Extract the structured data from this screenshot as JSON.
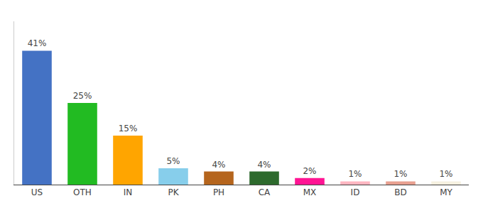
{
  "chart_data": {
    "type": "bar",
    "categories": [
      "US",
      "OTH",
      "IN",
      "PK",
      "PH",
      "CA",
      "MX",
      "ID",
      "BD",
      "MY"
    ],
    "values": [
      41,
      25,
      15,
      5,
      4,
      4,
      2,
      1,
      1,
      1
    ],
    "value_labels": [
      "41%",
      "25%",
      "15%",
      "5%",
      "4%",
      "4%",
      "2%",
      "1%",
      "1%",
      "1%"
    ],
    "colors": [
      "#4472c4",
      "#22bb22",
      "#ffa500",
      "#87ceeb",
      "#b5651d",
      "#2d6a2d",
      "#ff1493",
      "#ffb6c1",
      "#e8a090",
      "#f5f0e0"
    ],
    "ylim": [
      0,
      50
    ],
    "grid": false,
    "data_labels": true,
    "tick_labels": "x"
  }
}
